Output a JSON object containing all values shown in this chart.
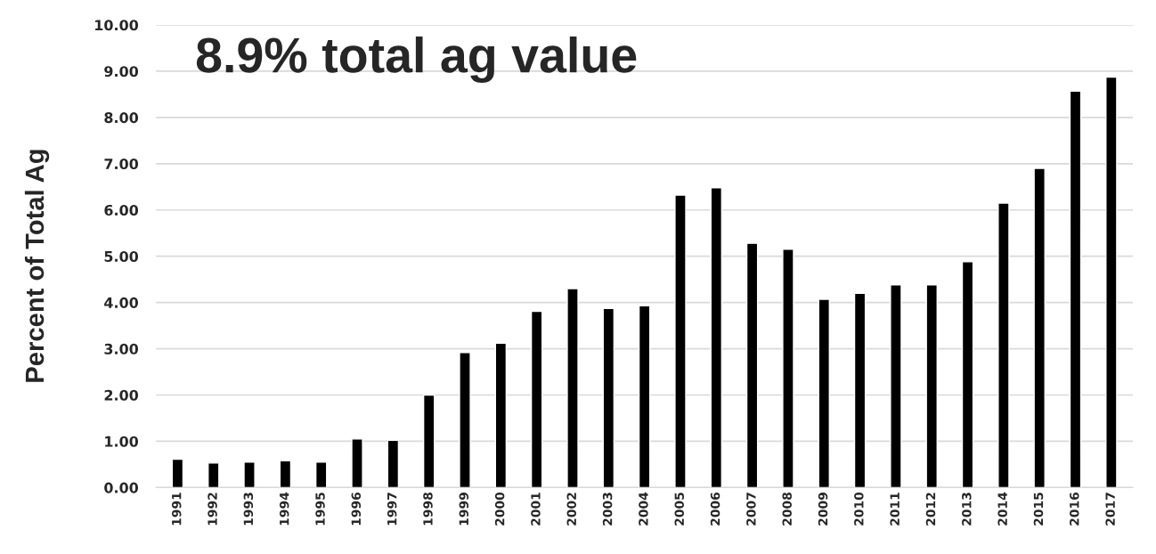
{
  "chart_data": {
    "type": "bar",
    "title": "8.9% total ag value",
    "ylabel": "Percent of Total Ag",
    "categories": [
      "1991",
      "1992",
      "1993",
      "1994",
      "1995",
      "1996",
      "1997",
      "1998",
      "1999",
      "2000",
      "2001",
      "2002",
      "2003",
      "2004",
      "2005",
      "2006",
      "2007",
      "2008",
      "2009",
      "2010",
      "2011",
      "2012",
      "2013",
      "2014",
      "2015",
      "2016",
      "2017"
    ],
    "values": [
      0.61,
      0.53,
      0.55,
      0.58,
      0.55,
      1.05,
      1.02,
      2.0,
      2.92,
      3.12,
      3.81,
      4.3,
      3.87,
      3.93,
      6.32,
      6.48,
      5.28,
      5.15,
      4.07,
      4.2,
      4.38,
      4.38,
      4.88,
      6.15,
      6.9,
      8.57,
      8.87
    ],
    "color": "#000000",
    "ylim": [
      0,
      10
    ],
    "yticks": [
      {
        "value": 0,
        "label": "0.00"
      },
      {
        "value": 1,
        "label": "1.00"
      },
      {
        "value": 2,
        "label": "2.00"
      },
      {
        "value": 3,
        "label": "3.00"
      },
      {
        "value": 4,
        "label": "4.00"
      },
      {
        "value": 5,
        "label": "5.00"
      },
      {
        "value": 6,
        "label": "6.00"
      },
      {
        "value": 7,
        "label": "7.00"
      },
      {
        "value": 8,
        "label": "8.00"
      },
      {
        "value": 9,
        "label": "9.00"
      },
      {
        "value": 10,
        "label": "10.00"
      }
    ],
    "grid": "y"
  }
}
